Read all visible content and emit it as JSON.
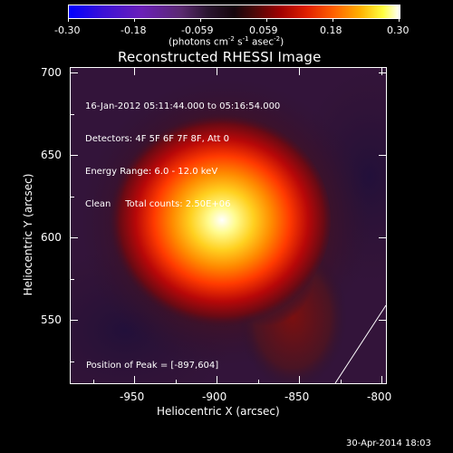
{
  "colorbar": {
    "tick_labels": [
      "-0.30",
      "-0.18",
      "-0.059",
      "0.059",
      "0.18",
      "0.30"
    ],
    "units_label": "(photons cm",
    "units_sup1": "-2",
    "units_mid1": " s",
    "units_sup2": "-1",
    "units_mid2": " asec",
    "units_sup3": "-2",
    "units_end": ")"
  },
  "title": "Reconstructed RHESSI Image",
  "info_lines": [
    "16-Jan-2012 05:11:44.000 to 05:16:54.000",
    "Detectors: 4F 5F 6F 7F 8F, Att 0",
    "Energy Range: 6.0 - 12.0 keV",
    "Clean     Total counts: 2.50E+06"
  ],
  "peak_text": "Position of Peak = [-897,604]",
  "x_axis": {
    "title": "Heliocentric X (arcsec)",
    "tick_labels": [
      "-950",
      "-900",
      "-850",
      "-800"
    ]
  },
  "y_axis": {
    "title": "Heliocentric Y (arcsec)",
    "tick_labels": [
      "700",
      "650",
      "600",
      "550"
    ]
  },
  "footer_timestamp": "30-Apr-2014 18:03"
}
